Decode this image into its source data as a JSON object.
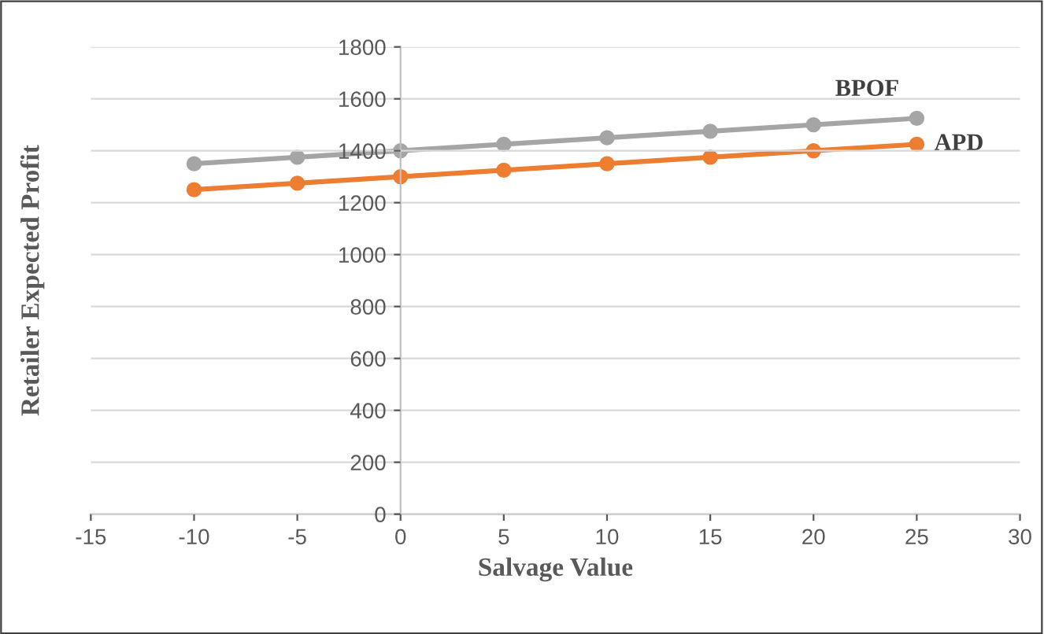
{
  "chart_data": {
    "type": "line",
    "xlabel": "Salvage Value",
    "ylabel": "Retailer Expected Profit",
    "x": [
      -10,
      -5,
      0,
      5,
      10,
      15,
      20,
      25
    ],
    "series": [
      {
        "name": "BPOF",
        "color": "#a5a5a5",
        "values": [
          1350,
          1375,
          1400,
          1425,
          1450,
          1475,
          1500,
          1525
        ]
      },
      {
        "name": "APD",
        "color": "#ed7d31",
        "values": [
          1250,
          1275,
          1300,
          1325,
          1350,
          1375,
          1400,
          1425
        ]
      }
    ],
    "xlim": [
      -15,
      30
    ],
    "xticks": [
      -15,
      -10,
      -5,
      0,
      5,
      10,
      15,
      20,
      25,
      30
    ],
    "ylim": [
      0,
      1800
    ],
    "yticks": [
      0,
      200,
      400,
      600,
      800,
      1000,
      1200,
      1400,
      1600,
      1800
    ],
    "grid": "y",
    "legend": false,
    "marker": "circle",
    "line_style": "solid"
  }
}
